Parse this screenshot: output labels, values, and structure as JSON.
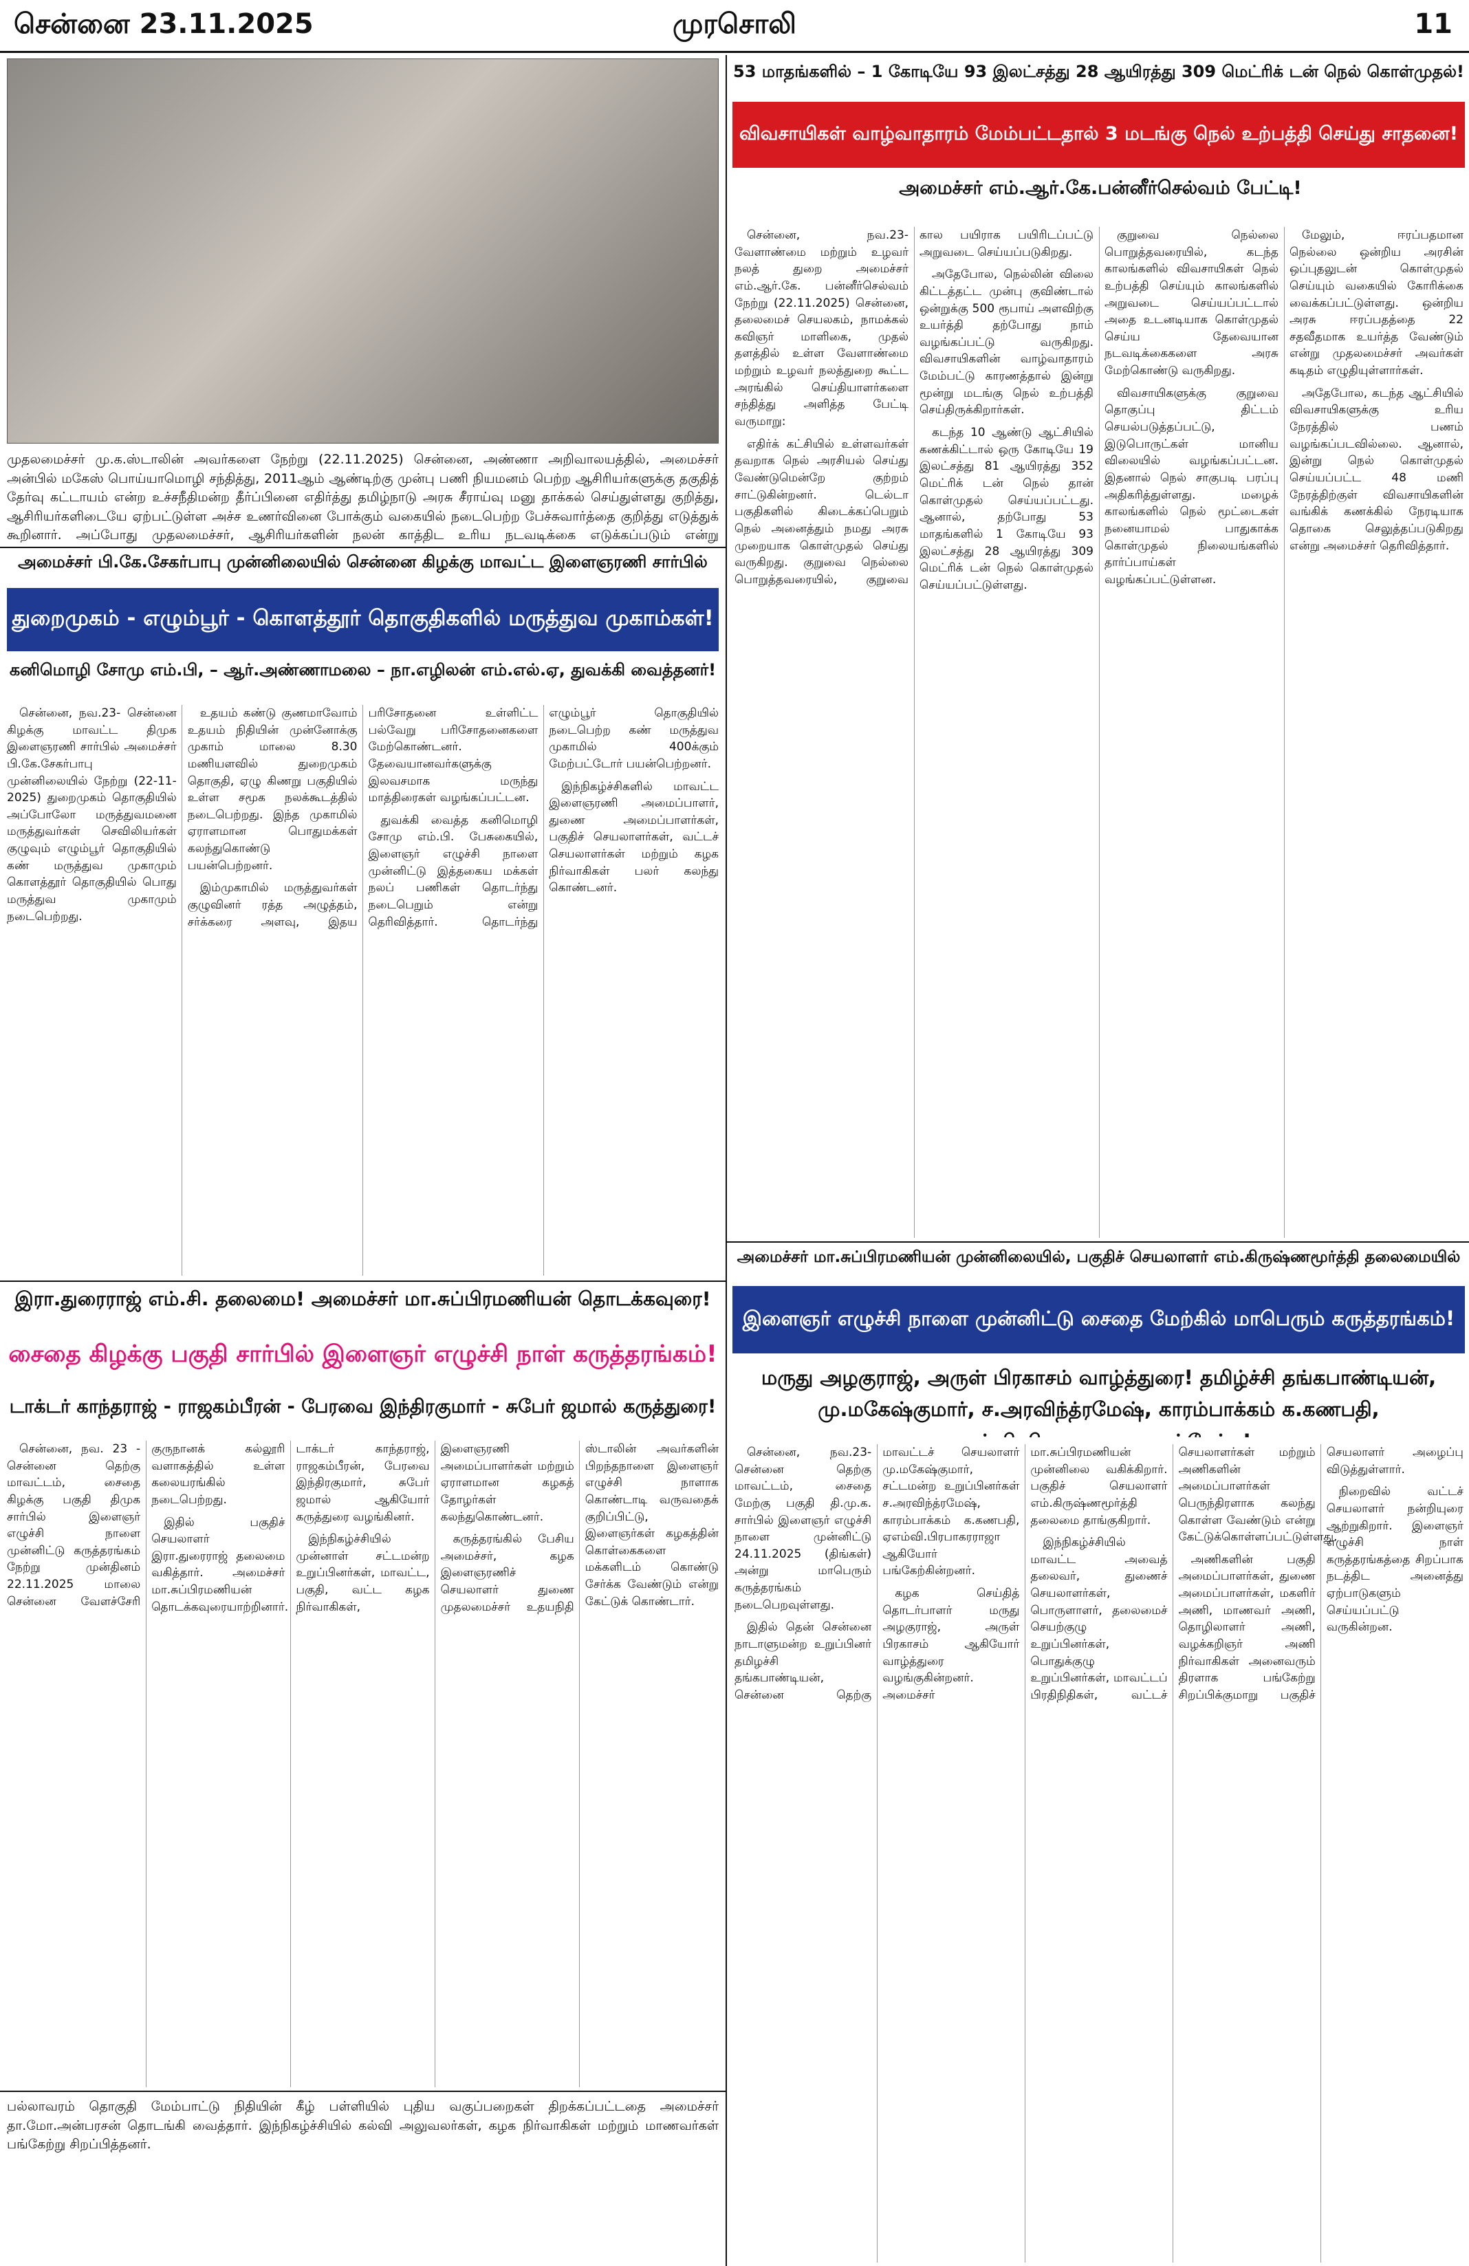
{
  "header": {
    "date": "சென்னை 23.11.2025",
    "paper": "முரசொலி",
    "page": "11"
  },
  "paddy": {
    "supertitle": "53 மாதங்களில் – 1 கோடியே 93 இலட்சத்து 28 ஆயிரத்து 309 மெட்ரிக் டன் நெல் கொள்முதல்!",
    "headline": "விவசாயிகள் வாழ்வாதாரம் மேம்பட்டதால் 3 மடங்கு நெல் உற்பத்தி செய்து சாதனை!",
    "subhead": "அமைச்சர் எம்.ஆர்.கே.பன்னீர்செல்வம் பேட்டி!",
    "paragraphs": [
      "சென்னை, நவ.23- வேளாண்மை மற்றும் உழவர் நலத் துறை அமைச்சர் எம்.ஆர்.கே. பன்னீர்செல்வம் நேற்று (22.11.2025) சென்னை, தலைமைச் செயலகம், நாமக்கல் கவிஞர் மாளிகை, முதல் தளத்தில் உள்ள வேளாண்மை மற்றும் உழவர் நலத்துறை கூட்ட அரங்கில் செய்தியாளர்களை சந்தித்து அளித்த பேட்டி வருமாறு:",
      "எதிர்க் கட்சியில் உள்ளவர்கள் தவறாக நெல் அரசியல் செய்து வேண்டுமென்றே குற்றம் சாட்டுகின்றனர். டெல்டா பகுதிகளில் கிடைக்கப்பெறும் நெல் அனைத்தும் நமது அரசு முறையாக கொள்முதல் செய்து வருகிறது. குறுவை நெல்லை பொறுத்தவரையில், குறுவை கால பயிராக பயிரிடப்பட்டு அறுவடை செய்யப்படுகிறது.",
      "அதேபோல, நெல்லின் விலை கிட்டத்தட்ட முன்பு குவிண்டால் ஒன்றுக்கு 500 ரூபாய் அளவிற்கு உயர்த்தி தற்போது நாம் வழங்கப்பட்டு வருகிறது. விவசாயிகளின் வாழ்வாதாரம் மேம்பட்டு காரணத்தால் இன்று மூன்று மடங்கு நெல் உற்பத்தி செய்திருக்கிறார்கள்.",
      "கடந்த 10 ஆண்டு ஆட்சியில் கணக்கிட்டால் ஒரு கோடியே 19 இலட்சத்து 81 ஆயிரத்து 352 மெட்ரிக் டன் நெல் தான் கொள்முதல் செய்யப்பட்டது. ஆனால், தற்போது 53 மாதங்களில் 1 கோடியே 93 இலட்சத்து 28 ஆயிரத்து 309 மெட்ரிக் டன் நெல் கொள்முதல் செய்யப்பட்டுள்ளது.",
      "குறுவை நெல்லை பொறுத்தவரையில், கடந்த காலங்களில் விவசாயிகள் நெல் உற்பத்தி செய்யும் காலங்களில் அறுவடை செய்யப்பட்டால் அதை உடனடியாக கொள்முதல் செய்ய தேவையான நடவடிக்கைகளை அரசு மேற்கொண்டு வருகிறது.",
      "விவசாயிகளுக்கு குறுவை தொகுப்பு திட்டம் செயல்படுத்தப்பட்டு, இடுபொருட்கள் மானிய விலையில் வழங்கப்பட்டன. இதனால் நெல் சாகுபடி பரப்பு அதிகரித்துள்ளது. மழைக் காலங்களில் நெல் மூட்டைகள் நனையாமல் பாதுகாக்க கொள்முதல் நிலையங்களில் தார்ப்பாய்கள் வழங்கப்பட்டுள்ளன.",
      "மேலும், ஈரப்பதமான நெல்லை ஒன்றிய அரசின் ஒப்புதலுடன் கொள்முதல் செய்யும் வகையில் கோரிக்கை வைக்கப்பட்டுள்ளது. ஒன்றிய அரசு ஈரப்பதத்தை 22 சதவீதமாக உயர்த்த வேண்டும் என்று முதலமைச்சர் அவர்கள் கடிதம் எழுதியுள்ளார்கள்.",
      "அதேபோல, கடந்த ஆட்சியில் விவசாயிகளுக்கு உரிய நேரத்தில் பணம் வழங்கப்படவில்லை. ஆனால், இன்று நெல் கொள்முதல் செய்யப்பட்ட 48 மணி நேரத்திற்குள் விவசாயிகளின் வங்கிக் கணக்கில் நேரடியாக தொகை செலுத்தப்படுகிறது என்று அமைச்சர் தெரிவித்தார்."
    ]
  },
  "top_photo": {
    "caption": "முதலமைச்சர் மு.க.ஸ்டாலின் அவர்களை நேற்று (22.11.2025) சென்னை, அண்ணா அறிவாலயத்தில், அமைச்சர் அன்பில் மகேஸ் பொய்யாமொழி சந்தித்து, 2011ஆம் ஆண்டிற்கு முன்பு பணி நியமனம் பெற்ற ஆசிரியர்களுக்கு தகுதித் தேர்வு கட்டாயம் என்ற உச்சநீதிமன்ற தீர்ப்பினை எதிர்த்து தமிழ்நாடு அரசு சீராய்வு மனு தாக்கல் செய்துள்ளது குறித்து, ஆசிரியர்களிடையே ஏற்பட்டுள்ள அச்ச உணர்வினை போக்கும் வகையில் நடைபெற்ற பேச்சுவார்த்தை குறித்து எடுத்துக் கூறினார். அப்போது முதலமைச்சர், ஆசிரியர்களின் நலன் காத்திட உரிய நடவடிக்கை எடுக்கப்படும் என்று உறுதியளித்தார். இச்சந்திப்பின்போது, முதல் வழக்கறிஞர் பி.வில்சன் எம்.பி. உடனிருந்தார்."
  },
  "medical_camp": {
    "kicker": "அமைச்சர் பி.கே.சேகர்பாபு முன்னிலையில் சென்னை கிழக்கு மாவட்ட இளைஞரணி சார்பில்",
    "headline": "துறைமுகம் - எழும்பூர் - கொளத்தூர் தொகுதிகளில் மருத்துவ முகாம்கள்!",
    "subhead": "கனிமொழி சோமு எம்.பி, – ஆர்.அண்ணாமலை – நா.எழிலன் எம்.எல்.ஏ, துவக்கி வைத்தனர்!",
    "paragraphs": [
      "சென்னை, நவ.23- சென்னை கிழக்கு மாவட்ட திமுக இளைஞரணி சார்பில் அமைச்சர் பி.கே.சேகர்பாபு முன்னிலையில் நேற்று (22-11-2025) துறைமுகம் தொகுதியில் அப்போலோ மருத்துவமனை மருத்துவர்கள் செவிலியர்கள் குழுவும் எழும்பூர் தொகுதியில் கண் மருத்துவ முகாமும் கொளத்தூர் தொகுதியில் பொது மருத்துவ முகாமும் நடைபெற்றது.",
      "உதயம் கண்டு குணமாவோம் உதயம் நிதியின் முன்னோக்கு முகாம் மாலை 8.30 மணியளவில் துறைமுகம் தொகுதி, ஏழு கிணறு பகுதியில் உள்ள சமூக நலக்கூடத்தில் நடைபெற்றது. இந்த முகாமில் ஏராளமான பொதுமக்கள் கலந்துகொண்டு பயன்பெற்றனர்.",
      "இம்முகாமில் மருத்துவர்கள் குழுவினர் ரத்த அழுத்தம், சர்க்கரை அளவு, இதய பரிசோதனை உள்ளிட்ட பல்வேறு பரிசோதனைகளை மேற்கொண்டனர். தேவையானவர்களுக்கு இலவசமாக மருந்து மாத்திரைகள் வழங்கப்பட்டன.",
      "துவக்கி வைத்த கனிமொழி சோமு எம்.பி. பேசுகையில், இளைஞர் எழுச்சி நாளை முன்னிட்டு இத்தகைய மக்கள் நலப் பணிகள் தொடர்ந்து நடைபெறும் என்று தெரிவித்தார். தொடர்ந்து எழும்பூர் தொகுதியில் நடைபெற்ற கண் மருத்துவ முகாமில் 400க்கும் மேற்பட்டோர் பயன்பெற்றனர்.",
      "இந்நிகழ்ச்சிகளில் மாவட்ட இளைஞரணி அமைப்பாளர், துணை அமைப்பாளர்கள், பகுதிச் செயலாளர்கள், வட்டச் செயலாளர்கள் மற்றும் கழக நிர்வாகிகள் பலர் கலந்து கொண்டனர்."
    ]
  },
  "saidapet_east": {
    "kicker": "இரா.துரைராஜ் எம்.சி. தலைமை! அமைச்சர் மா.சுப்பிரமணியன் தொடக்கவுரை!",
    "headline": "சைதை கிழக்கு பகுதி சார்பில் இளைஞர் எழுச்சி நாள் கருத்தரங்கம்!",
    "subhead": "டாக்டர் காந்தராஜ் - ராஜகம்பீரன் - பேரவை இந்திரகுமார் - சுபேர் ஜமால் கருத்துரை!",
    "paragraphs": [
      "சென்னை, நவ. 23 - சென்னை தெற்கு மாவட்டம், சைதை கிழக்கு பகுதி திமுக சார்பில் இளைஞர் எழுச்சி நாளை முன்னிட்டு கருத்தரங்கம் நேற்று முன்தினம் 22.11.2025 மாலை சென்னை வேளச்சேரி குருநானக் கல்லூரி வளாகத்தில் உள்ள கலையரங்கில் நடைபெற்றது.",
      "இதில் பகுதிச் செயலாளர் இரா.துரைராஜ் தலைமை வகித்தார். அமைச்சர் மா.சுப்பிரமணியன் தொடக்கவுரையாற்றினார். டாக்டர் காந்தராஜ், ராஜகம்பீரன், பேரவை இந்திரகுமார், சுபேர் ஜமால் ஆகியோர் கருத்துரை வழங்கினர்.",
      "இந்நிகழ்ச்சியில் முன்னாள் சட்டமன்ற உறுப்பினர்கள், மாவட்ட, பகுதி, வட்ட கழக நிர்வாகிகள், இளைஞரணி அமைப்பாளர்கள் மற்றும் ஏராளமான கழகத் தோழர்கள் கலந்துகொண்டனர்.",
      "கருத்தரங்கில் பேசிய அமைச்சர், கழக இளைஞரணிச் செயலாளர் துணை முதலமைச்சர் உதயநிதி ஸ்டாலின் அவர்களின் பிறந்தநாளை இளைஞர் எழுச்சி நாளாக கொண்டாடி வருவதைக் குறிப்பிட்டு, இளைஞர்கள் கழகத்தின் கொள்கைகளை மக்களிடம் கொண்டு சேர்க்க வேண்டும் என்று கேட்டுக் கொண்டார்."
    ],
    "caption": "பல்லாவரம் தொகுதி மேம்பாட்டு நிதியின் கீழ் பள்ளியில் புதிய வகுப்பறைகள் திறக்கப்பட்டதை அமைச்சர் தா.மோ.அன்பரசன் தொடங்கி வைத்தார். இந்நிகழ்ச்சியில் கல்வி அலுவலர்கள், கழக நிர்வாகிகள் மற்றும் மாணவர்கள் பங்கேற்று சிறப்பித்தனர்."
  },
  "saidapet_west": {
    "kicker": "அமைச்சர் மா.சுப்பிரமணியன் முன்னிலையில், பகுதிச் செயலாளர் எம்.கிருஷ்ணமூர்த்தி தலைமையில்",
    "headline": "இளைஞர் எழுச்சி நாளை முன்னிட்டு சைதை மேற்கில் மாபெரும் கருத்தரங்கம்!",
    "subhead": "மருது அழகுராஜ், அருள் பிரகாசம் வாழ்த்துரை! தமிழ்ச்சி தங்கபாண்டியன், மு.மகேஷ்குமார், ச.அரவிந்த்ரமேஷ், காரம்பாக்கம் க.கணபதி, ஏஎம்வி.பிரபாகரராஜா பங்கேற்பு!",
    "paragraphs": [
      "சென்னை, நவ.23- சென்னை தெற்கு மாவட்டம், சைதை மேற்கு பகுதி தி.மு.க. சார்பில் இளைஞர் எழுச்சி நாளை முன்னிட்டு 24.11.2025 (திங்கள்) அன்று மாபெரும் கருத்தரங்கம் நடைபெறவுள்ளது.",
      "இதில் தென் சென்னை நாடாளுமன்ற உறுப்பினர் தமிழச்சி தங்கபாண்டியன், சென்னை தெற்கு மாவட்டச் செயலாளர் மு.மகேஷ்குமார், சட்டமன்ற உறுப்பினர்கள் ச.அரவிந்த்ரமேஷ், காரம்பாக்கம் க.கணபதி, ஏஎம்வி.பிரபாகரராஜா ஆகியோர் பங்கேற்கின்றனர்.",
      "கழக செய்தித் தொடர்பாளர் மருது அழகுராஜ், அருள் பிரகாசம் ஆகியோர் வாழ்த்துரை வழங்குகின்றனர். அமைச்சர் மா.சுப்பிரமணியன் முன்னிலை வகிக்கிறார். பகுதிச் செயலாளர் எம்.கிருஷ்ணமூர்த்தி தலைமை தாங்குகிறார்.",
      "இந்நிகழ்ச்சியில் மாவட்ட அவைத் தலைவர், துணைச் செயலாளர்கள், பொருளாளர், தலைமைச் செயற்குழு உறுப்பினர்கள், பொதுக்குழு உறுப்பினர்கள், மாவட்டப் பிரதிநிதிகள், வட்டச் செயலாளர்கள் மற்றும் அணிகளின் அமைப்பாளர்கள் பெருந்திரளாக கலந்து கொள்ள வேண்டும் என்று கேட்டுக்கொள்ளப்பட்டுள்ளது.",
      "அணிகளின் பகுதி அமைப்பாளர்கள், துணை அமைப்பாளர்கள், மகளிர் அணி, மாணவர் அணி, தொழிலாளர் அணி, வழக்கறிஞர் அணி நிர்வாகிகள் அனைவரும் திரளாக பங்கேற்று சிறப்பிக்குமாறு பகுதிச் செயலாளர் அழைப்பு விடுத்துள்ளார்.",
      "நிறைவில் வட்டச் செயலாளர் நன்றியுரை ஆற்றுகிறார். இளைஞர் எழுச்சி நாள் கருத்தரங்கத்தை சிறப்பாக நடத்திட அனைத்து ஏற்பாடுகளும் செய்யப்பட்டு வருகின்றன."
    ]
  }
}
